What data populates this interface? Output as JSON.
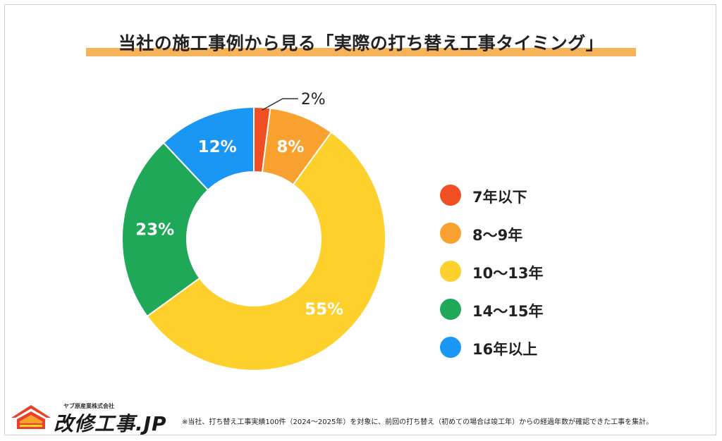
{
  "title": "当社の施工事例から見る「実際の打ち替え工事タイミング」",
  "chart_data": {
    "type": "pie",
    "title": "当社の施工事例から見る「実際の打ち替え工事タイミング」",
    "donut": true,
    "categories": [
      "7年以下",
      "8〜9年",
      "10〜13年",
      "14〜15年",
      "16年以上"
    ],
    "values": [
      2,
      8,
      55,
      23,
      12
    ],
    "labels": [
      "2%",
      "8%",
      "55%",
      "23%",
      "12%"
    ],
    "colors": [
      "#f04e23",
      "#f9a12e",
      "#fdd02c",
      "#1ea857",
      "#1a96f4"
    ],
    "legend_position": "right"
  },
  "footer": {
    "company": "ヤブ原産業株式会社",
    "brand": "改修工事.JP",
    "note": "※当社、打ち替え工事実績100件（2024〜2025年）を対象に、前回の打ち替え（初めての場合は竣工年）からの経過年数が確認できた工事を集計。"
  }
}
